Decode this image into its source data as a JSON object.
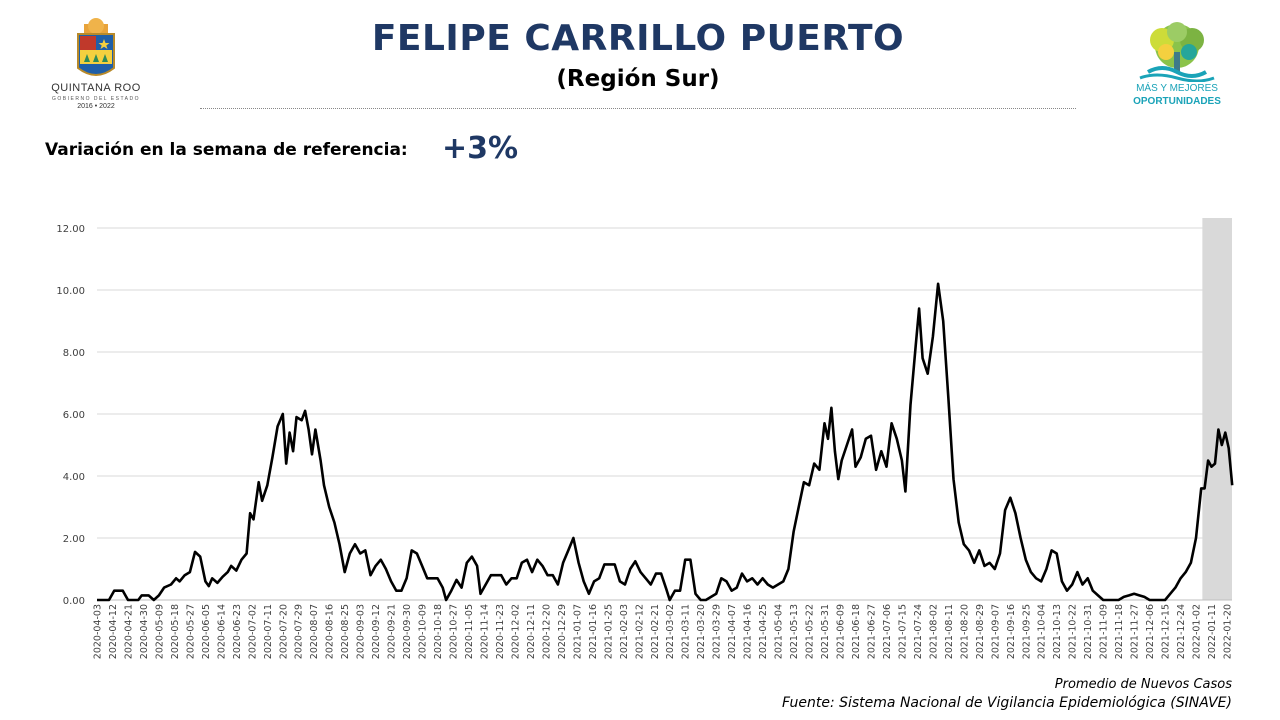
{
  "header": {
    "title": "FELIPE CARRILLO PUERTO",
    "subtitle": "(Región Sur)"
  },
  "logos": {
    "left_state": "QUINTANA ROO",
    "left_government": "GOBIERNO DEL ESTADO",
    "left_years": "2016 • 2022",
    "right_line1": "MÁS Y MEJORES",
    "right_line2": "OPORTUNIDADES"
  },
  "variation": {
    "label": "Variación en la semana de referencia:",
    "value": "+3%"
  },
  "footer": {
    "series_label": "Promedio de Nuevos Casos",
    "source": "Fuente: Sistema Nacional de Vigilancia Epidemiológica (SINAVE)"
  },
  "colors": {
    "title": "#1f3864",
    "line": "#000000",
    "grid": "#d9d9d9",
    "highlight": "#d9d9d9",
    "logo_accent": "#1aa3b8"
  },
  "chart_data": {
    "type": "line",
    "title": "",
    "xlabel": "",
    "ylabel": "",
    "ylim": [
      0,
      12
    ],
    "y_ticks": [
      "0.00",
      "2.00",
      "4.00",
      "6.00",
      "8.00",
      "10.00",
      "12.00"
    ],
    "grid": "horizontal",
    "legend": "none",
    "highlight_range": [
      "2022-01-08",
      "2022-01-24"
    ],
    "x_ticks": [
      "2020-04-03",
      "2020-04-12",
      "2020-04-21",
      "2020-04-30",
      "2020-05-09",
      "2020-05-18",
      "2020-05-27",
      "2020-06-05",
      "2020-06-14",
      "2020-06-23",
      "2020-07-02",
      "2020-07-11",
      "2020-07-20",
      "2020-07-29",
      "2020-08-07",
      "2020-08-16",
      "2020-08-25",
      "2020-09-03",
      "2020-09-12",
      "2020-09-21",
      "2020-09-30",
      "2020-10-09",
      "2020-10-18",
      "2020-10-27",
      "2020-11-05",
      "2020-11-14",
      "2020-11-23",
      "2020-12-02",
      "2020-12-11",
      "2020-12-20",
      "2020-12-29",
      "2021-01-07",
      "2021-01-16",
      "2021-01-25",
      "2021-02-03",
      "2021-02-12",
      "2021-02-21",
      "2021-03-02",
      "2021-03-11",
      "2021-03-20",
      "2021-03-29",
      "2021-04-07",
      "2021-04-16",
      "2021-04-25",
      "2021-05-04",
      "2021-05-13",
      "2021-05-22",
      "2021-05-31",
      "2021-06-09",
      "2021-06-18",
      "2021-06-27",
      "2021-07-06",
      "2021-07-15",
      "2021-07-24",
      "2021-08-02",
      "2021-08-11",
      "2021-08-20",
      "2021-08-29",
      "2021-09-07",
      "2021-09-16",
      "2021-09-25",
      "2021-10-04",
      "2021-10-13",
      "2021-10-22",
      "2021-10-31",
      "2021-11-09",
      "2021-11-18",
      "2021-11-27",
      "2021-12-06",
      "2021-12-15",
      "2021-12-24",
      "2022-01-02",
      "2022-01-11",
      "2022-01-20"
    ],
    "series": [
      {
        "values": [
          [
            "2020-04-03",
            0
          ],
          [
            "2020-04-10",
            0
          ],
          [
            "2020-04-13",
            0.3
          ],
          [
            "2020-04-18",
            0.3
          ],
          [
            "2020-04-21",
            0
          ],
          [
            "2020-04-27",
            0
          ],
          [
            "2020-04-29",
            0.15
          ],
          [
            "2020-05-03",
            0.15
          ],
          [
            "2020-05-06",
            0
          ],
          [
            "2020-05-09",
            0.15
          ],
          [
            "2020-05-12",
            0.4
          ],
          [
            "2020-05-16",
            0.5
          ],
          [
            "2020-05-19",
            0.7
          ],
          [
            "2020-05-21",
            0.6
          ],
          [
            "2020-05-24",
            0.8
          ],
          [
            "2020-05-27",
            0.9
          ],
          [
            "2020-05-30",
            1.55
          ],
          [
            "2020-06-02",
            1.4
          ],
          [
            "2020-06-05",
            0.6
          ],
          [
            "2020-06-07",
            0.45
          ],
          [
            "2020-06-09",
            0.7
          ],
          [
            "2020-06-12",
            0.55
          ],
          [
            "2020-06-15",
            0.75
          ],
          [
            "2020-06-18",
            0.9
          ],
          [
            "2020-06-20",
            1.1
          ],
          [
            "2020-06-23",
            0.95
          ],
          [
            "2020-06-26",
            1.3
          ],
          [
            "2020-06-29",
            1.5
          ],
          [
            "2020-07-01",
            2.8
          ],
          [
            "2020-07-03",
            2.6
          ],
          [
            "2020-07-06",
            3.8
          ],
          [
            "2020-07-08",
            3.2
          ],
          [
            "2020-07-11",
            3.7
          ],
          [
            "2020-07-14",
            4.6
          ],
          [
            "2020-07-17",
            5.6
          ],
          [
            "2020-07-20",
            6.0
          ],
          [
            "2020-07-22",
            4.4
          ],
          [
            "2020-07-24",
            5.4
          ],
          [
            "2020-07-26",
            4.8
          ],
          [
            "2020-07-28",
            5.9
          ],
          [
            "2020-07-31",
            5.8
          ],
          [
            "2020-08-02",
            6.1
          ],
          [
            "2020-08-04",
            5.5
          ],
          [
            "2020-08-06",
            4.7
          ],
          [
            "2020-08-08",
            5.5
          ],
          [
            "2020-08-11",
            4.5
          ],
          [
            "2020-08-13",
            3.7
          ],
          [
            "2020-08-16",
            3.0
          ],
          [
            "2020-08-19",
            2.5
          ],
          [
            "2020-08-22",
            1.8
          ],
          [
            "2020-08-25",
            0.9
          ],
          [
            "2020-08-28",
            1.5
          ],
          [
            "2020-08-31",
            1.8
          ],
          [
            "2020-09-03",
            1.5
          ],
          [
            "2020-09-06",
            1.6
          ],
          [
            "2020-09-09",
            0.8
          ],
          [
            "2020-09-12",
            1.1
          ],
          [
            "2020-09-15",
            1.3
          ],
          [
            "2020-09-18",
            1.0
          ],
          [
            "2020-09-21",
            0.6
          ],
          [
            "2020-09-24",
            0.3
          ],
          [
            "2020-09-27",
            0.3
          ],
          [
            "2020-09-30",
            0.7
          ],
          [
            "2020-10-03",
            1.6
          ],
          [
            "2020-10-06",
            1.5
          ],
          [
            "2020-10-09",
            1.1
          ],
          [
            "2020-10-12",
            0.7
          ],
          [
            "2020-10-15",
            0.7
          ],
          [
            "2020-10-18",
            0.7
          ],
          [
            "2020-10-21",
            0.4
          ],
          [
            "2020-10-23",
            0
          ],
          [
            "2020-10-26",
            0.3
          ],
          [
            "2020-10-29",
            0.65
          ],
          [
            "2020-11-01",
            0.4
          ],
          [
            "2020-11-04",
            1.2
          ],
          [
            "2020-11-07",
            1.4
          ],
          [
            "2020-11-10",
            1.1
          ],
          [
            "2020-11-12",
            0.2
          ],
          [
            "2020-11-15",
            0.5
          ],
          [
            "2020-11-18",
            0.8
          ],
          [
            "2020-11-21",
            0.8
          ],
          [
            "2020-11-24",
            0.8
          ],
          [
            "2020-11-27",
            0.5
          ],
          [
            "2020-11-30",
            0.7
          ],
          [
            "2020-12-03",
            0.7
          ],
          [
            "2020-12-06",
            1.2
          ],
          [
            "2020-12-09",
            1.3
          ],
          [
            "2020-12-12",
            0.9
          ],
          [
            "2020-12-15",
            1.3
          ],
          [
            "2020-12-18",
            1.1
          ],
          [
            "2020-12-21",
            0.8
          ],
          [
            "2020-12-24",
            0.8
          ],
          [
            "2020-12-27",
            0.5
          ],
          [
            "2020-12-30",
            1.2
          ],
          [
            "2021-01-02",
            1.6
          ],
          [
            "2021-01-05",
            2.0
          ],
          [
            "2021-01-08",
            1.2
          ],
          [
            "2021-01-11",
            0.6
          ],
          [
            "2021-01-14",
            0.2
          ],
          [
            "2021-01-17",
            0.6
          ],
          [
            "2021-01-20",
            0.7
          ],
          [
            "2021-01-23",
            1.15
          ],
          [
            "2021-01-26",
            1.15
          ],
          [
            "2021-01-29",
            1.15
          ],
          [
            "2021-02-01",
            0.6
          ],
          [
            "2021-02-04",
            0.5
          ],
          [
            "2021-02-07",
            1.0
          ],
          [
            "2021-02-10",
            1.25
          ],
          [
            "2021-02-13",
            0.9
          ],
          [
            "2021-02-16",
            0.7
          ],
          [
            "2021-02-19",
            0.5
          ],
          [
            "2021-02-22",
            0.85
          ],
          [
            "2021-02-25",
            0.85
          ],
          [
            "2021-02-28",
            0.35
          ],
          [
            "2021-03-02",
            0
          ],
          [
            "2021-03-05",
            0.3
          ],
          [
            "2021-03-08",
            0.3
          ],
          [
            "2021-03-11",
            1.3
          ],
          [
            "2021-03-14",
            1.3
          ],
          [
            "2021-03-17",
            0.2
          ],
          [
            "2021-03-20",
            0
          ],
          [
            "2021-03-23",
            0
          ],
          [
            "2021-03-26",
            0.1
          ],
          [
            "2021-03-29",
            0.2
          ],
          [
            "2021-04-01",
            0.7
          ],
          [
            "2021-04-04",
            0.6
          ],
          [
            "2021-04-07",
            0.3
          ],
          [
            "2021-04-10",
            0.4
          ],
          [
            "2021-04-13",
            0.85
          ],
          [
            "2021-04-16",
            0.6
          ],
          [
            "2021-04-19",
            0.7
          ],
          [
            "2021-04-22",
            0.5
          ],
          [
            "2021-04-25",
            0.7
          ],
          [
            "2021-04-28",
            0.5
          ],
          [
            "2021-05-01",
            0.4
          ],
          [
            "2021-05-04",
            0.5
          ],
          [
            "2021-05-07",
            0.6
          ],
          [
            "2021-05-10",
            1.0
          ],
          [
            "2021-05-13",
            2.2
          ],
          [
            "2021-05-16",
            3.0
          ],
          [
            "2021-05-19",
            3.8
          ],
          [
            "2021-05-22",
            3.7
          ],
          [
            "2021-05-25",
            4.4
          ],
          [
            "2021-05-28",
            4.2
          ],
          [
            "2021-05-31",
            5.7
          ],
          [
            "2021-06-02",
            5.2
          ],
          [
            "2021-06-04",
            6.2
          ],
          [
            "2021-06-06",
            4.8
          ],
          [
            "2021-06-08",
            3.9
          ],
          [
            "2021-06-10",
            4.5
          ],
          [
            "2021-06-13",
            5.0
          ],
          [
            "2021-06-16",
            5.5
          ],
          [
            "2021-06-18",
            4.3
          ],
          [
            "2021-06-21",
            4.6
          ],
          [
            "2021-06-24",
            5.2
          ],
          [
            "2021-06-27",
            5.3
          ],
          [
            "2021-06-30",
            4.2
          ],
          [
            "2021-07-03",
            4.8
          ],
          [
            "2021-07-06",
            4.3
          ],
          [
            "2021-07-09",
            5.7
          ],
          [
            "2021-07-12",
            5.2
          ],
          [
            "2021-07-15",
            4.5
          ],
          [
            "2021-07-17",
            3.5
          ],
          [
            "2021-07-20",
            6.3
          ],
          [
            "2021-07-23",
            8.2
          ],
          [
            "2021-07-25",
            9.4
          ],
          [
            "2021-07-27",
            7.8
          ],
          [
            "2021-07-30",
            7.3
          ],
          [
            "2021-08-02",
            8.5
          ],
          [
            "2021-08-05",
            10.2
          ],
          [
            "2021-08-08",
            9.0
          ],
          [
            "2021-08-11",
            6.5
          ],
          [
            "2021-08-14",
            3.9
          ],
          [
            "2021-08-17",
            2.5
          ],
          [
            "2021-08-20",
            1.8
          ],
          [
            "2021-08-23",
            1.6
          ],
          [
            "2021-08-26",
            1.2
          ],
          [
            "2021-08-29",
            1.6
          ],
          [
            "2021-09-01",
            1.1
          ],
          [
            "2021-09-04",
            1.2
          ],
          [
            "2021-09-07",
            1.0
          ],
          [
            "2021-09-10",
            1.5
          ],
          [
            "2021-09-13",
            2.9
          ],
          [
            "2021-09-16",
            3.3
          ],
          [
            "2021-09-19",
            2.8
          ],
          [
            "2021-09-22",
            2.0
          ],
          [
            "2021-09-25",
            1.3
          ],
          [
            "2021-09-28",
            0.9
          ],
          [
            "2021-10-01",
            0.7
          ],
          [
            "2021-10-04",
            0.6
          ],
          [
            "2021-10-07",
            1.0
          ],
          [
            "2021-10-10",
            1.6
          ],
          [
            "2021-10-13",
            1.5
          ],
          [
            "2021-10-16",
            0.6
          ],
          [
            "2021-10-19",
            0.3
          ],
          [
            "2021-10-22",
            0.5
          ],
          [
            "2021-10-25",
            0.9
          ],
          [
            "2021-10-28",
            0.5
          ],
          [
            "2021-10-31",
            0.7
          ],
          [
            "2021-11-03",
            0.3
          ],
          [
            "2021-11-06",
            0.15
          ],
          [
            "2021-11-09",
            0
          ],
          [
            "2021-11-12",
            0
          ],
          [
            "2021-11-15",
            0
          ],
          [
            "2021-11-18",
            0
          ],
          [
            "2021-11-21",
            0.1
          ],
          [
            "2021-11-24",
            0.15
          ],
          [
            "2021-11-27",
            0.2
          ],
          [
            "2021-11-30",
            0.15
          ],
          [
            "2021-12-03",
            0.1
          ],
          [
            "2021-12-06",
            0
          ],
          [
            "2021-12-09",
            0
          ],
          [
            "2021-12-12",
            0
          ],
          [
            "2021-12-15",
            0
          ],
          [
            "2021-12-18",
            0.2
          ],
          [
            "2021-12-21",
            0.4
          ],
          [
            "2021-12-24",
            0.7
          ],
          [
            "2021-12-27",
            0.9
          ],
          [
            "2021-12-30",
            1.2
          ],
          [
            "2022-01-02",
            2.0
          ],
          [
            "2022-01-05",
            3.6
          ],
          [
            "2022-01-07",
            3.6
          ],
          [
            "2022-01-09",
            4.5
          ],
          [
            "2022-01-11",
            4.3
          ],
          [
            "2022-01-13",
            4.4
          ],
          [
            "2022-01-15",
            5.5
          ],
          [
            "2022-01-17",
            5.0
          ],
          [
            "2022-01-19",
            5.4
          ],
          [
            "2022-01-21",
            4.9
          ],
          [
            "2022-01-23",
            3.7
          ]
        ]
      }
    ]
  }
}
